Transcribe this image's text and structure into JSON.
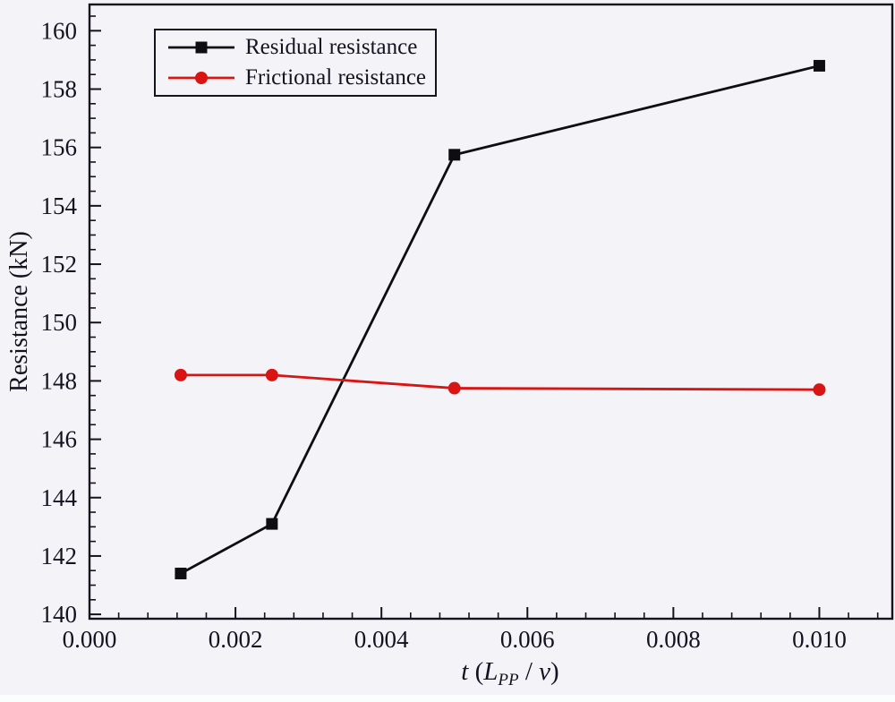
{
  "figure": {
    "background": "#f4f4f8",
    "axis_color": "#16121e",
    "text_color": "#141220"
  },
  "chart_data": {
    "type": "line",
    "title": "",
    "xlabel": "t (L_PP / v)",
    "xlabel_parts": {
      "part1": "t",
      "part2": " (",
      "part3": "L",
      "part4": "PP",
      "part5": " / ",
      "part6": "v",
      "part7": ")"
    },
    "ylabel": "Resistance (kN)",
    "xlim": [
      0,
      0.011
    ],
    "ylim": [
      139.85,
      160.9
    ],
    "x_ticks": [
      {
        "value": 0.0,
        "label": "0.000"
      },
      {
        "value": 0.002,
        "label": "0.002"
      },
      {
        "value": 0.004,
        "label": "0.004"
      },
      {
        "value": 0.006,
        "label": "0.006"
      },
      {
        "value": 0.008,
        "label": "0.008"
      },
      {
        "value": 0.01,
        "label": "0.010"
      }
    ],
    "y_ticks": [
      {
        "value": 140,
        "label": "140"
      },
      {
        "value": 142,
        "label": "142"
      },
      {
        "value": 144,
        "label": "144"
      },
      {
        "value": 146,
        "label": "146"
      },
      {
        "value": 148,
        "label": "148"
      },
      {
        "value": 150,
        "label": "150"
      },
      {
        "value": 152,
        "label": "152"
      },
      {
        "value": 154,
        "label": "154"
      },
      {
        "value": 156,
        "label": "156"
      },
      {
        "value": 158,
        "label": "158"
      },
      {
        "value": 160,
        "label": "160"
      }
    ],
    "x_minor_step": 0.0004,
    "x_major_step": 0.002,
    "y_minor_step": 0.5,
    "y_major_step": 2,
    "grid": "off",
    "legend_position": "top-left",
    "series": [
      {
        "name": "Residual resistance",
        "color": "#0e0d13",
        "marker": "square",
        "x": [
          0.00125,
          0.0025,
          0.005,
          0.01
        ],
        "y": [
          141.4,
          143.1,
          155.75,
          158.8
        ]
      },
      {
        "name": "Frictional resistance",
        "color": "#da1412",
        "marker": "circle",
        "x": [
          0.00125,
          0.0025,
          0.005,
          0.01
        ],
        "y": [
          148.2,
          148.2,
          147.75,
          147.7
        ]
      }
    ]
  }
}
